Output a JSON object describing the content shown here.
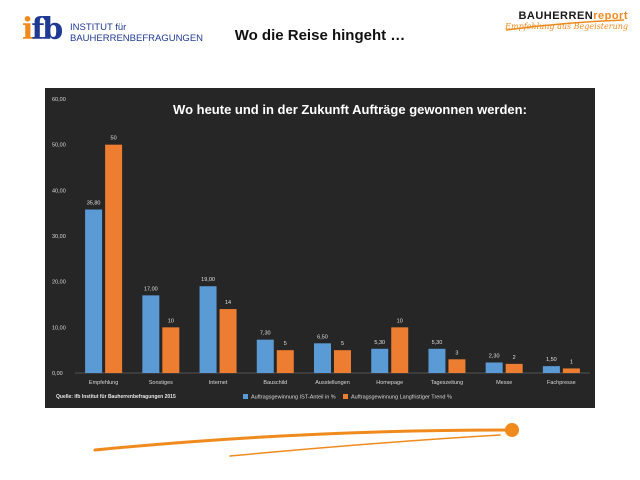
{
  "header": {
    "title": "Wo die Reise hingeht …",
    "left_logo": {
      "mark": "ifb",
      "line1": "INSTITUT für",
      "line2": "BAUHERRENBEFRAGUNGEN"
    },
    "right_logo": {
      "word1": "BAUHERREN",
      "word2": "report",
      "tagline": "Empfehlung aus Begeisterung"
    }
  },
  "colors": {
    "series1": "#5b9bd5",
    "series2": "#ed7d31",
    "background": "#262626"
  },
  "chart_data": {
    "type": "bar",
    "title": "Wo heute und in der Zukunft Aufträge gewonnen werden:",
    "source": "Quelle: ifb Institut für Bauherrenbefragungen 2015",
    "categories": [
      "Empfehlung",
      "Sonstiges",
      "Internet",
      "Bauschild",
      "Ausstellungen",
      "Homepage",
      "Tageszeitung",
      "Messe",
      "Fachpresse"
    ],
    "series": [
      {
        "name": "Auftragsgewinnung IST-Anteil in %",
        "values": [
          35.8,
          17.0,
          19.0,
          7.3,
          6.5,
          5.3,
          5.3,
          2.3,
          1.5
        ],
        "labels": [
          "35,80",
          "17,00",
          "19,00",
          "7,30",
          "6,50",
          "5,30",
          "5,30",
          "2,30",
          "1,50"
        ]
      },
      {
        "name": "Auftragsgewinnung Langfristiger Trend %",
        "values": [
          50,
          10,
          14,
          5,
          5,
          10,
          3,
          2,
          1
        ],
        "labels": [
          "50",
          "10",
          "14",
          "5",
          "5",
          "10",
          "3",
          "2",
          "1"
        ]
      }
    ],
    "ylim": [
      0,
      60
    ],
    "yticks": [
      "0,00",
      "10,00",
      "20,00",
      "30,00",
      "40,00",
      "50,00",
      "60,00"
    ],
    "grid": false,
    "legend": "bottom"
  }
}
